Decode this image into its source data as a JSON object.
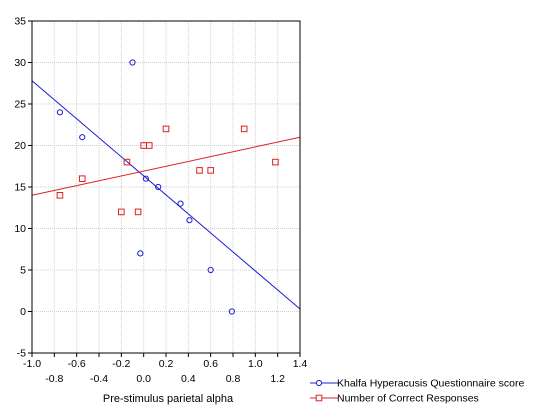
{
  "chart_data": {
    "type": "scatter",
    "title": "",
    "xlabel": "Pre-stimulus parietal alpha",
    "ylabel": "",
    "xlim": [
      -1.0,
      1.4
    ],
    "ylim": [
      -5,
      35
    ],
    "grid": true,
    "legend_position": "bottom-right",
    "x_ticks_upper": [
      "-1.0",
      "-0.6",
      "-0.2",
      "0.2",
      "0.6",
      "1.0",
      "1.4"
    ],
    "x_ticks_upper_values": [
      -1.0,
      -0.6,
      -0.2,
      0.2,
      0.6,
      1.0,
      1.4
    ],
    "x_ticks_lower": [
      "-0.8",
      "-0.4",
      "0.0",
      "0.4",
      "0.8",
      "1.2"
    ],
    "x_ticks_lower_values": [
      -0.8,
      -0.4,
      0.0,
      0.4,
      0.8,
      1.2
    ],
    "y_ticks": [
      "-5",
      "0",
      "5",
      "10",
      "15",
      "20",
      "25",
      "30",
      "35"
    ],
    "y_ticks_values": [
      -5,
      0,
      5,
      10,
      15,
      20,
      25,
      30,
      35
    ],
    "series": [
      {
        "name": "Khalfa Hyperacusis Questionnaire score",
        "color": "#1f1fd6",
        "marker": "circle",
        "points": [
          {
            "x": -0.75,
            "y": 24
          },
          {
            "x": -0.55,
            "y": 21
          },
          {
            "x": -0.1,
            "y": 30
          },
          {
            "x": -0.03,
            "y": 7
          },
          {
            "x": 0.02,
            "y": 16
          },
          {
            "x": 0.13,
            "y": 15
          },
          {
            "x": 0.33,
            "y": 13
          },
          {
            "x": 0.41,
            "y": 11
          },
          {
            "x": 0.6,
            "y": 5
          },
          {
            "x": 0.79,
            "y": 0
          }
        ],
        "fit": [
          [
            -1.0,
            27.8
          ],
          [
            1.4,
            0.3
          ]
        ]
      },
      {
        "name": "Number of Correct Responses",
        "color": "#e02020",
        "marker": "square",
        "points": [
          {
            "x": -0.75,
            "y": 14
          },
          {
            "x": -0.55,
            "y": 16
          },
          {
            "x": -0.2,
            "y": 12
          },
          {
            "x": -0.15,
            "y": 18
          },
          {
            "x": -0.05,
            "y": 12
          },
          {
            "x": 0.0,
            "y": 20
          },
          {
            "x": 0.05,
            "y": 20
          },
          {
            "x": 0.2,
            "y": 22
          },
          {
            "x": 0.5,
            "y": 17
          },
          {
            "x": 0.6,
            "y": 17
          },
          {
            "x": 0.9,
            "y": 22
          },
          {
            "x": 1.18,
            "y": 18
          }
        ],
        "fit": [
          [
            -1.0,
            14.0
          ],
          [
            1.4,
            21.0
          ]
        ]
      }
    ]
  }
}
